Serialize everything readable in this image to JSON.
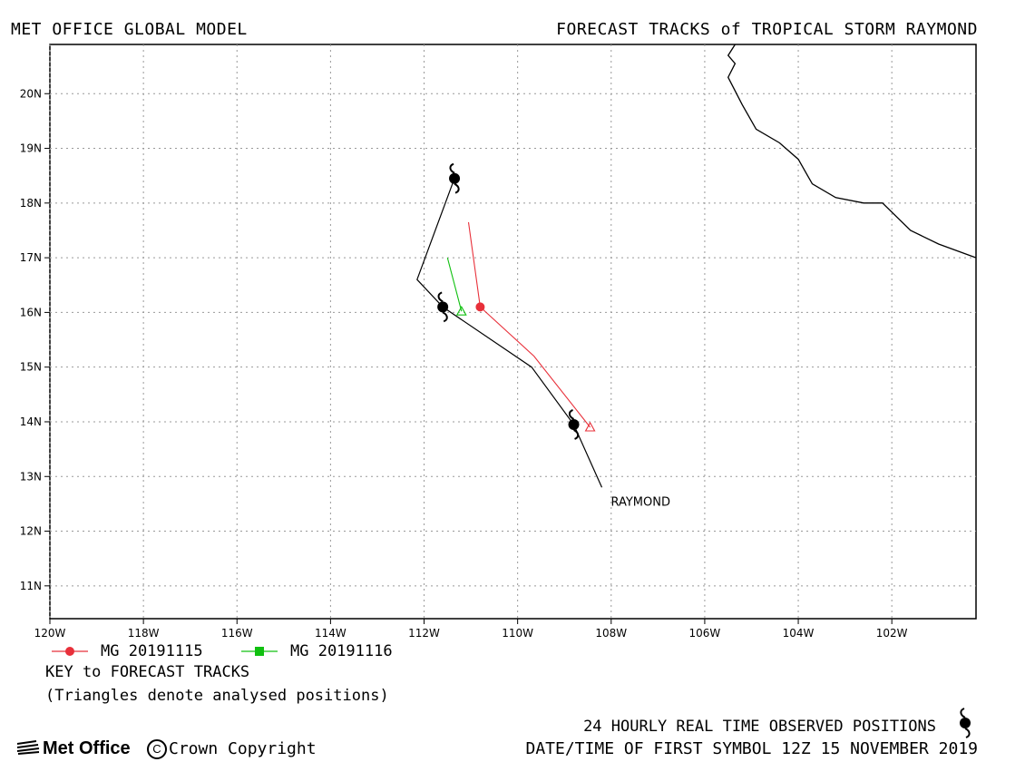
{
  "header": {
    "left": "MET OFFICE GLOBAL MODEL",
    "right": "FORECAST TRACKS of TROPICAL STORM RAYMOND"
  },
  "map": {
    "lon_range": [
      -120,
      -100.2
    ],
    "lat_range": [
      10.4,
      20.9
    ],
    "lon_ticks": [
      {
        "value": -120,
        "label": "120W"
      },
      {
        "value": -118,
        "label": "118W"
      },
      {
        "value": -116,
        "label": "116W"
      },
      {
        "value": -114,
        "label": "114W"
      },
      {
        "value": -112,
        "label": "112W"
      },
      {
        "value": -110,
        "label": "110W"
      },
      {
        "value": -108,
        "label": "108W"
      },
      {
        "value": -106,
        "label": "106W"
      },
      {
        "value": -104,
        "label": "104W"
      },
      {
        "value": -102,
        "label": "102W"
      }
    ],
    "lat_ticks": [
      {
        "value": 11,
        "label": "11N"
      },
      {
        "value": 12,
        "label": "12N"
      },
      {
        "value": 13,
        "label": "13N"
      },
      {
        "value": 14,
        "label": "14N"
      },
      {
        "value": 15,
        "label": "15N"
      },
      {
        "value": 16,
        "label": "16N"
      },
      {
        "value": 17,
        "label": "17N"
      },
      {
        "value": 18,
        "label": "18N"
      },
      {
        "value": 19,
        "label": "19N"
      },
      {
        "value": 20,
        "label": "20N"
      }
    ],
    "gridlines": true,
    "coastline": [
      [
        -105.35,
        20.9
      ],
      [
        -105.5,
        20.7
      ],
      [
        -105.35,
        20.55
      ],
      [
        -105.5,
        20.3
      ],
      [
        -105.2,
        19.8
      ],
      [
        -104.9,
        19.35
      ],
      [
        -104.4,
        19.1
      ],
      [
        -104.0,
        18.8
      ],
      [
        -103.7,
        18.35
      ],
      [
        -103.2,
        18.1
      ],
      [
        -102.6,
        18.0
      ],
      [
        -102.2,
        18.0
      ],
      [
        -101.6,
        17.5
      ],
      [
        -101.0,
        17.25
      ],
      [
        -100.2,
        17.0
      ]
    ],
    "colors": {
      "observed": "#000000",
      "mg_20191115": "#e8303a",
      "mg_20191116": "#10c010"
    }
  },
  "storm": {
    "name": "RAYMOND",
    "observed_track": [
      [
        -108.2,
        12.8
      ],
      [
        -108.8,
        13.95
      ],
      [
        -109.7,
        15.0
      ],
      [
        -111.6,
        16.1
      ],
      [
        -112.15,
        16.6
      ],
      [
        -111.35,
        18.45
      ]
    ],
    "observed_symbols": [
      [
        -108.8,
        13.95
      ],
      [
        -111.6,
        16.1
      ],
      [
        -111.35,
        18.45
      ]
    ],
    "forecast_tracks": [
      {
        "label": "MG 20191115",
        "color": "#e8303a",
        "track": [
          [
            -108.45,
            13.9
          ],
          [
            -109.65,
            15.2
          ],
          [
            -110.8,
            16.1
          ],
          [
            -111.05,
            17.65
          ]
        ],
        "analysed": [
          -108.45,
          13.9
        ],
        "marker": [
          -110.8,
          16.1
        ]
      },
      {
        "label": "MG 20191116",
        "color": "#10c010",
        "track": [
          [
            -111.2,
            16.02
          ],
          [
            -111.5,
            17.0
          ]
        ],
        "analysed": [
          -111.2,
          16.02
        ]
      }
    ]
  },
  "key": {
    "title": "KEY to FORECAST TRACKS",
    "note": "(Triangles denote analysed positions)",
    "items": [
      {
        "label": "MG 20191115",
        "color": "#e8303a",
        "marker": "circle"
      },
      {
        "label": "MG 20191116",
        "color": "#10c010",
        "marker": "square"
      }
    ]
  },
  "footer": {
    "observed_note": "24 HOURLY REAL TIME OBSERVED POSITIONS",
    "datetime_note": "DATE/TIME OF FIRST SYMBOL 12Z 15 NOVEMBER 2019",
    "logo": "Met Office",
    "copyright_symbol": "C",
    "copyright": "Crown Copyright"
  }
}
